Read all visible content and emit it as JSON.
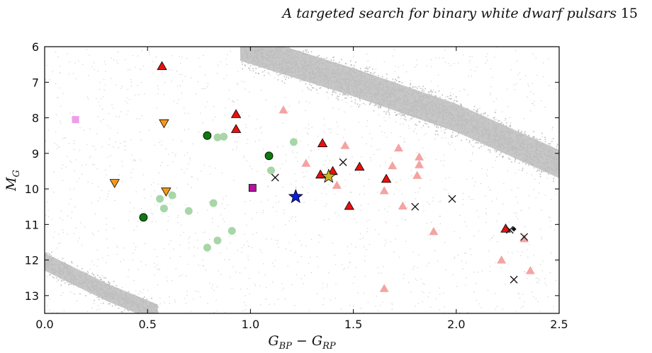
{
  "header": {
    "running_title": "A targeted search for binary white dwarf pulsars",
    "page_number": "15"
  },
  "chart_data": {
    "type": "scatter",
    "title": "",
    "xlabel_main": "G",
    "xlabel_sub1": "BP",
    "xlabel_minus": " − ",
    "xlabel_sub2": "RP",
    "ylabel_main": "M",
    "ylabel_sub": "G",
    "xlim": [
      0.0,
      2.5
    ],
    "ylim": [
      13.5,
      6.0
    ],
    "y_inverted": true,
    "grid": false,
    "xticks": [
      0.0,
      0.5,
      1.0,
      1.5,
      2.0,
      2.5
    ],
    "xtick_labels": [
      "0.0",
      "0.5",
      "1.0",
      "1.5",
      "2.0",
      "2.5"
    ],
    "yticks": [
      6,
      7,
      8,
      9,
      10,
      11,
      12,
      13
    ],
    "ytick_labels": [
      "6",
      "7",
      "8",
      "9",
      "10",
      "11",
      "12",
      "13"
    ],
    "background_bands": [
      {
        "name": "main-sequence",
        "color": "#bdbdbd",
        "centerline": [
          [
            0.95,
            6.0
          ],
          [
            1.5,
            7.0
          ],
          [
            2.0,
            8.0
          ],
          [
            2.5,
            9.3
          ]
        ],
        "half_width_mag": 0.72
      },
      {
        "name": "white-dwarf-sequence",
        "color": "#bdbdbd",
        "centerline": [
          [
            0.0,
            12.05
          ],
          [
            0.3,
            12.9
          ],
          [
            0.55,
            13.5
          ]
        ],
        "half_width_mag": 0.45
      }
    ],
    "series": [
      {
        "marker": "triangle-up",
        "color": "#e8110f",
        "edge": "#000000",
        "points": [
          [
            0.57,
            6.55
          ],
          [
            0.93,
            7.9
          ],
          [
            0.93,
            8.32
          ],
          [
            1.35,
            8.72
          ],
          [
            1.34,
            9.6
          ],
          [
            1.4,
            9.5
          ],
          [
            1.53,
            9.38
          ],
          [
            1.66,
            9.72
          ],
          [
            1.48,
            10.48
          ],
          [
            2.24,
            11.12
          ]
        ]
      },
      {
        "marker": "triangle-up",
        "color": "#f4a3a3",
        "edge": "none",
        "points": [
          [
            1.16,
            7.78
          ],
          [
            1.46,
            8.78
          ],
          [
            1.27,
            9.28
          ],
          [
            1.42,
            9.9
          ],
          [
            1.72,
            8.85
          ],
          [
            1.82,
            9.1
          ],
          [
            1.82,
            9.32
          ],
          [
            1.69,
            9.35
          ],
          [
            1.81,
            9.62
          ],
          [
            1.65,
            10.05
          ],
          [
            1.74,
            10.48
          ],
          [
            1.89,
            11.2
          ],
          [
            2.22,
            12.0
          ],
          [
            2.33,
            11.4
          ],
          [
            2.36,
            12.3
          ],
          [
            1.65,
            12.8
          ]
        ]
      },
      {
        "marker": "triangle-down",
        "color": "#f39a1b",
        "edge": "#000000",
        "points": [
          [
            0.58,
            8.15
          ],
          [
            0.34,
            9.83
          ],
          [
            0.59,
            10.07
          ]
        ]
      },
      {
        "marker": "circle",
        "color": "#0d7a0d",
        "edge": "#000000",
        "points": [
          [
            0.79,
            8.5
          ],
          [
            1.09,
            9.07
          ],
          [
            0.48,
            10.8
          ]
        ]
      },
      {
        "marker": "circle",
        "color": "#a8d6a8",
        "edge": "none",
        "points": [
          [
            0.84,
            8.55
          ],
          [
            0.87,
            8.53
          ],
          [
            1.21,
            8.68
          ],
          [
            1.1,
            9.48
          ],
          [
            0.56,
            10.28
          ],
          [
            0.62,
            10.18
          ],
          [
            0.58,
            10.55
          ],
          [
            0.7,
            10.62
          ],
          [
            0.82,
            10.4
          ],
          [
            0.91,
            11.18
          ],
          [
            0.84,
            11.45
          ],
          [
            0.79,
            11.65
          ]
        ]
      },
      {
        "marker": "square",
        "color": "#ee9ee8",
        "edge": "none",
        "points": [
          [
            0.15,
            8.05
          ]
        ]
      },
      {
        "marker": "square",
        "color": "#b7139e",
        "edge": "#000000",
        "points": [
          [
            1.01,
            9.97
          ]
        ]
      },
      {
        "marker": "star",
        "color": "#0c1fd6",
        "edge": "#000000",
        "points": [
          [
            1.22,
            10.22
          ]
        ]
      },
      {
        "marker": "star",
        "color": "#c9b72a",
        "edge": "#000000",
        "points": [
          [
            1.38,
            9.65
          ]
        ]
      },
      {
        "marker": "x",
        "color": "#111111",
        "edge": "none",
        "points": [
          [
            1.12,
            9.68
          ],
          [
            1.45,
            9.25
          ],
          [
            1.8,
            10.5
          ],
          [
            1.98,
            10.28
          ],
          [
            2.28,
            12.55
          ],
          [
            2.33,
            11.35
          ],
          [
            2.26,
            11.15
          ]
        ]
      },
      {
        "marker": "diamond",
        "color": "#111111",
        "edge": "none",
        "points": [
          [
            2.28,
            11.13
          ]
        ]
      }
    ]
  }
}
